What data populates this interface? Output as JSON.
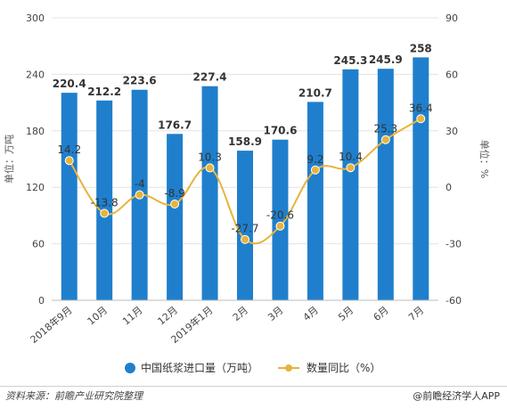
{
  "chart_data": {
    "type": "bar",
    "categories": [
      "2018年9月",
      "10月",
      "11月",
      "12月",
      "2019年1月",
      "2月",
      "3月",
      "4月",
      "5月",
      "6月",
      "7月"
    ],
    "series": [
      {
        "name": "中国纸浆进口量（万吨）",
        "type": "bar",
        "axis": "left",
        "values": [
          220.4,
          212.2,
          223.6,
          176.7,
          227.4,
          158.9,
          170.6,
          210.7,
          245.3,
          245.9,
          258
        ],
        "labels": [
          "220.4",
          "212.2",
          "223.6",
          "176.7",
          "227.4",
          "158.9",
          "170.6",
          "210.7",
          "245.3",
          "245.9",
          "258"
        ]
      },
      {
        "name": "数量同比（%）",
        "type": "line",
        "axis": "right",
        "values": [
          14.2,
          -13.8,
          -4,
          -8.9,
          10.3,
          -27.7,
          -20.6,
          9.2,
          10.4,
          25.3,
          36.4
        ],
        "labels": [
          "14.2",
          "-13.8",
          "-4",
          "-8.9",
          "10.3",
          "-27.7",
          "-20.6",
          "9.2",
          "10.4",
          "25.3",
          "36.4"
        ]
      }
    ],
    "ylabel_left": "单位：万吨",
    "ylabel_right": "单位：%",
    "ylim_left": [
      0,
      300
    ],
    "yticks_left": [
      "0",
      "60",
      "120",
      "180",
      "240",
      "300"
    ],
    "ylim_right": [
      -60,
      90
    ],
    "yticks_right": [
      "-60",
      "-30",
      "0",
      "30",
      "60",
      "90"
    ],
    "grid": true,
    "legend_position": "bottom",
    "colors": {
      "bar": "#1f7fcc",
      "line": "#e8b33c",
      "grid": "#e3e3e3",
      "text": "#333333"
    }
  },
  "footer": {
    "source": "资料来源：前瞻产业研究院整理",
    "brand": "@前瞻经济学人APP"
  }
}
